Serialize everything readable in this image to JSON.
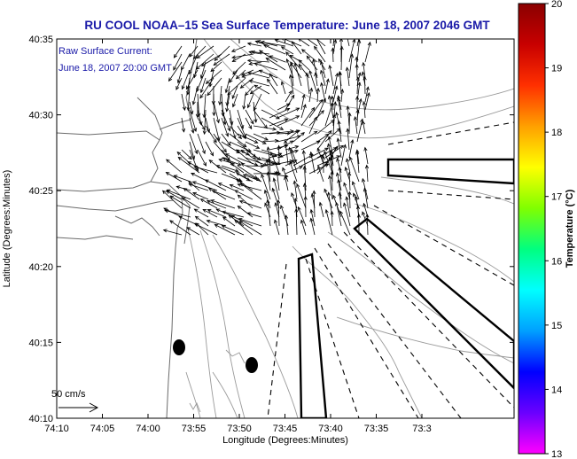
{
  "title": "RU COOL  NOAA–15  Sea Surface Temperature:  June 18, 2007 2046 GMT",
  "annotation": {
    "line1": "Raw Surface Current:",
    "line2": "June 18, 2007 20:00 GMT"
  },
  "scale_bar": {
    "label": "50 cm/s",
    "speed_cm_s": 50
  },
  "axes": {
    "xlabel": "Longitude (Degrees:Minutes)",
    "ylabel": "Latitude (Degrees:Minutes)",
    "x_ticks": [
      "74:10",
      "74:05",
      "74:00",
      "73:55",
      "73:50",
      "73:45",
      "73:40",
      "73:35",
      "73:3"
    ],
    "y_ticks": [
      "40:10",
      "40:15",
      "40:20",
      "40:25",
      "40:30",
      "40:35"
    ],
    "x_range_minutes_west": [
      10,
      30
    ],
    "y_range_minutes_north": [
      10,
      35
    ]
  },
  "colorbar": {
    "label": "Temperature (°C)",
    "ticks": [
      "13",
      "14",
      "15",
      "16",
      "17",
      "18",
      "19",
      "20"
    ],
    "range": [
      13,
      20
    ],
    "colors": [
      "#ff00ff",
      "#6a00ff",
      "#0000ff",
      "#00a0ff",
      "#00ffff",
      "#00ff80",
      "#80ff00",
      "#ffff00",
      "#ffa000",
      "#ff3000",
      "#c80000",
      "#8a0000"
    ]
  },
  "colors": {
    "title": "#1a1aa8",
    "annotation": "#1a1aa8",
    "contour": "#9a9a9a",
    "coast": "#6a6a6a",
    "vector": "#000000"
  }
}
